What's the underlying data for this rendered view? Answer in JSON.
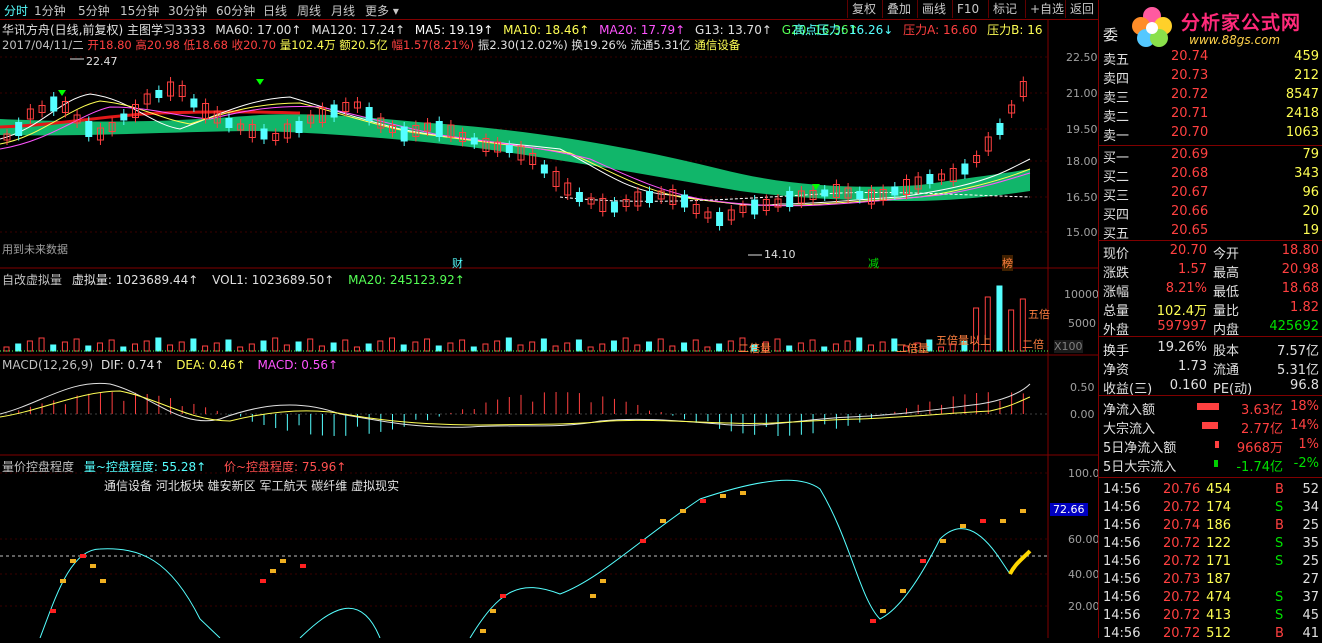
{
  "topbar": {
    "tabs": [
      "分时",
      "1分钟",
      "5分钟",
      "15分钟",
      "30分钟",
      "60分钟",
      "日线",
      "周线",
      "月线",
      "更多 ▾"
    ],
    "right_buttons": [
      "复权",
      "叠加",
      "画线",
      "F10",
      "+自选",
      "返回"
    ]
  },
  "header": {
    "line1": [
      {
        "text": "华讯方舟(日线,前复权) 主图学习3333",
        "color": "#e0e0e0"
      },
      {
        "text": "MA60: 17.00↑",
        "color": "#e0e0e0"
      },
      {
        "text": "MA120: 17.24↑",
        "color": "#e0e0e0"
      },
      {
        "text": "MA5: 19.19↑",
        "color": "#ffffff"
      },
      {
        "text": "MA10: 18.46↑",
        "color": "#ffff54"
      },
      {
        "text": "MA20: 17.79↑",
        "color": "#ff54ff"
      },
      {
        "text": "G13: 13.70↑",
        "color": "#e0e0e0"
      },
      {
        "text": "G20: 16.36↑",
        "color": "#55ff55"
      },
      {
        "text": "高点压力: 16.26↓",
        "color": "#55ffff"
      },
      {
        "text": "压力A: 16.60",
        "color": "#ff4040"
      },
      {
        "text": "压力B: 16",
        "color": "#ffff54"
      }
    ],
    "line2": [
      {
        "text": "2017/04/11/二",
        "color": "#c0c0c0"
      },
      {
        "text": "开18.80",
        "color": "#ff4040"
      },
      {
        "text": "高20.98",
        "color": "#ff4040"
      },
      {
        "text": "低18.68",
        "color": "#ff4040"
      },
      {
        "text": "收20.70",
        "color": "#ff4040"
      },
      {
        "text": "量102.4万",
        "color": "#ffff54"
      },
      {
        "text": "额20.5亿",
        "color": "#ffff54"
      },
      {
        "text": "幅1.57(8.21%)",
        "color": "#ff4040"
      },
      {
        "text": "振2.30(12.02%)",
        "color": "#e0e0e0"
      },
      {
        "text": "换19.26%",
        "color": "#e0e0e0"
      },
      {
        "text": "流通5.31亿",
        "color": "#e0e0e0"
      },
      {
        "text": "通信设备",
        "color": "#ffff54"
      }
    ]
  },
  "main": {
    "yaxis": [
      "22.50",
      "21.00",
      "19.50",
      "18.00",
      "16.50",
      "15.00"
    ],
    "high_label": "22.47",
    "low_label": "14.10",
    "note": "用到未来数据",
    "badges": [
      "财",
      "减",
      "榜"
    ]
  },
  "vol_panel": {
    "title": "自改虚拟量",
    "legend": [
      {
        "text": "虚拟量: 1023689.44↑",
        "color": "#e0e0e0"
      },
      {
        "text": "VOL1: 1023689.50↑",
        "color": "#e0e0e0"
      },
      {
        "text": "MA20: 245123.92↑",
        "color": "#55ff55"
      }
    ],
    "yaxis": [
      "10000",
      "5000",
      "X100"
    ],
    "annotations": [
      "二倍量",
      "二倍量",
      "五倍量以上",
      "五倍",
      "二倍"
    ]
  },
  "macd_panel": {
    "legend": [
      {
        "text": "MACD(12,26,9)",
        "color": "#c0c0c0"
      },
      {
        "text": "DIF: 0.74↑",
        "color": "#e0e0e0"
      },
      {
        "text": "DEA: 0.46↑",
        "color": "#ffff54"
      },
      {
        "text": "MACD: 0.56↑",
        "color": "#ff54ff"
      }
    ],
    "yaxis": [
      "0.50",
      "0.00"
    ]
  },
  "ctrl_panel": {
    "legend": [
      {
        "text": "量价控盘程度",
        "color": "#c0c0c0"
      },
      {
        "text": "量~控盘程度: 55.28↑",
        "color": "#55ffff"
      },
      {
        "text": "价~控盘程度: 75.96↑",
        "color": "#ff5050"
      }
    ],
    "tags": "通信设备 河北板块 雄安新区 军工航天 碳纤维 虚拟现实",
    "yaxis": [
      "100.0",
      "60.00",
      "40.00",
      "20.00"
    ],
    "current_badge": "72.66"
  },
  "quote": {
    "logo_brand": "分析家公式网",
    "logo_url": "www.88gs.com",
    "order_label": "委",
    "asks": [
      {
        "label": "卖五",
        "price": "20.74",
        "vol": "459"
      },
      {
        "label": "卖四",
        "price": "20.73",
        "vol": "212"
      },
      {
        "label": "卖三",
        "price": "20.72",
        "vol": "8547"
      },
      {
        "label": "卖二",
        "price": "20.71",
        "vol": "2418"
      },
      {
        "label": "卖一",
        "price": "20.70",
        "vol": "1063"
      }
    ],
    "bids": [
      {
        "label": "买一",
        "price": "20.69",
        "vol": "79"
      },
      {
        "label": "买二",
        "price": "20.68",
        "vol": "343"
      },
      {
        "label": "买三",
        "price": "20.67",
        "vol": "96"
      },
      {
        "label": "买四",
        "price": "20.66",
        "vol": "20"
      },
      {
        "label": "买五",
        "price": "20.65",
        "vol": "19"
      }
    ],
    "stats": [
      {
        "l1": "现价",
        "v1": "20.70",
        "c1": "red",
        "l2": "今开",
        "v2": "18.80",
        "c2": "red"
      },
      {
        "l1": "涨跌",
        "v1": "1.57",
        "c1": "red",
        "l2": "最高",
        "v2": "20.98",
        "c2": "red"
      },
      {
        "l1": "涨幅",
        "v1": "8.21%",
        "c1": "red",
        "l2": "最低",
        "v2": "18.68",
        "c2": "red"
      },
      {
        "l1": "总量",
        "v1": "102.4万",
        "c1": "yel",
        "l2": "量比",
        "v2": "1.82",
        "c2": "red"
      },
      {
        "l1": "外盘",
        "v1": "597997",
        "c1": "red",
        "l2": "内盘",
        "v2": "425692",
        "c2": "grn"
      }
    ],
    "stats2": [
      {
        "l1": "换手",
        "v1": "19.26%",
        "l2": "股本",
        "v2": "7.57亿"
      },
      {
        "l1": "净资",
        "v1": "1.73",
        "l2": "流通",
        "v2": "5.31亿"
      },
      {
        "l1": "收益(三)",
        "v1": "0.160",
        "l2": "PE(动)",
        "v2": "96.8"
      }
    ],
    "flows": [
      {
        "label": "净流入额",
        "value": "3.63亿",
        "pct": "18%",
        "color": "red",
        "bar": 0.9
      },
      {
        "label": "大宗流入",
        "value": "2.77亿",
        "pct": "14%",
        "color": "red",
        "bar": 0.7
      },
      {
        "label": "5日净流入额",
        "value": "9668万",
        "pct": "1%",
        "color": "red",
        "bar": 0.1
      },
      {
        "label": "5日大宗流入",
        "value": "-1.74亿",
        "pct": "-2%",
        "color": "grn",
        "bar": 0.15
      }
    ],
    "ticks": [
      {
        "time": "14:56",
        "price": "20.76",
        "vol": "454",
        "side": "B",
        "n": "52"
      },
      {
        "time": "14:56",
        "price": "20.72",
        "vol": "174",
        "side": "S",
        "n": "34"
      },
      {
        "time": "14:56",
        "price": "20.74",
        "vol": "186",
        "side": "B",
        "n": "25"
      },
      {
        "time": "14:56",
        "price": "20.72",
        "vol": "122",
        "side": "S",
        "n": "35"
      },
      {
        "time": "14:56",
        "price": "20.72",
        "vol": "171",
        "side": "S",
        "n": "25"
      },
      {
        "time": "14:56",
        "price": "20.73",
        "vol": "187",
        "side": "",
        "n": "27"
      },
      {
        "time": "14:56",
        "price": "20.72",
        "vol": "474",
        "side": "S",
        "n": "37"
      },
      {
        "time": "14:56",
        "price": "20.72",
        "vol": "413",
        "side": "S",
        "n": "45"
      },
      {
        "time": "14:56",
        "price": "20.72",
        "vol": "512",
        "side": "B",
        "n": "41"
      }
    ]
  }
}
